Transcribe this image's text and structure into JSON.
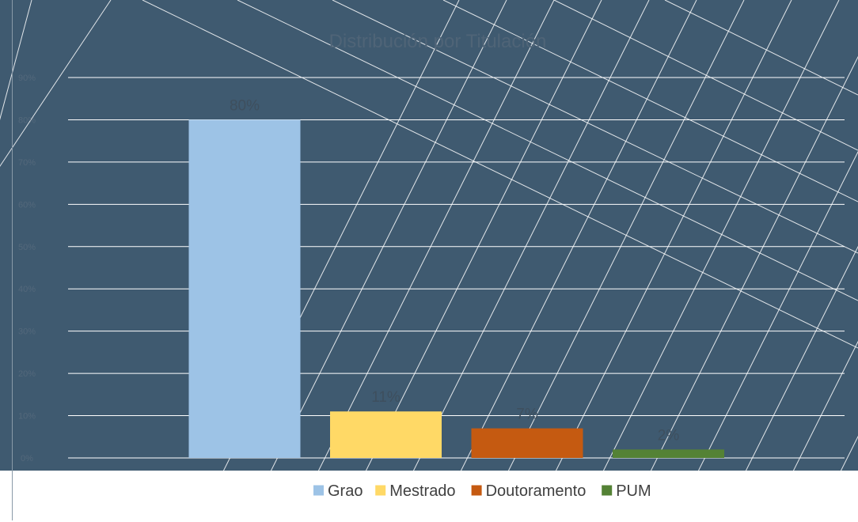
{
  "chart_data": {
    "type": "bar",
    "title": "Distribución por Titulación",
    "categories": [
      "Grao",
      "Mestrado",
      "Doutoramento",
      "PUM"
    ],
    "series": [
      {
        "values": [
          80,
          11,
          7,
          2
        ],
        "value_labels": [
          "80%",
          "11%",
          "7%",
          "2%"
        ],
        "colors": [
          "#9dc3e6",
          "#ffd966",
          "#c55a11",
          "#548235"
        ]
      }
    ],
    "y_ticks": [
      "0%",
      "10%",
      "20%",
      "30%",
      "40%",
      "50%",
      "60%",
      "70%",
      "80%",
      "90%"
    ],
    "ylim": [
      0,
      90
    ],
    "ylabel": "",
    "xlabel": "",
    "grid": true,
    "legend_position": "bottom",
    "background_color": "#3f5a70",
    "gridline_color": "#ffffff"
  }
}
